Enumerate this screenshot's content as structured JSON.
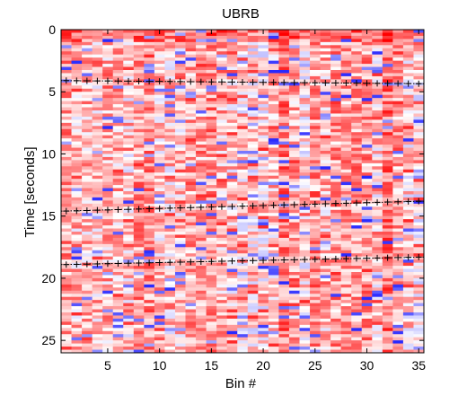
{
  "chart_data": {
    "type": "heatmap",
    "title": "UBRB",
    "xlabel": "Bin #",
    "ylabel": "Time [seconds]",
    "xlim": [
      0.5,
      35.5
    ],
    "ylim": [
      0,
      26
    ],
    "y_reversed": true,
    "x_ticks": [
      5,
      10,
      15,
      20,
      25,
      30,
      35
    ],
    "y_ticks": [
      0,
      5,
      10,
      15,
      20,
      25
    ],
    "n_bins": 35,
    "colormap": [
      "#0000ff",
      "#ffffff",
      "#ff0000"
    ],
    "marker_symbol": "+",
    "marker_color": "#000000",
    "event_lines": [
      {
        "y_start": 4.1,
        "y_end": 4.35,
        "x_start": 1,
        "x_end": 35
      },
      {
        "y_start": 14.6,
        "y_end": 13.8,
        "x_start": 1,
        "x_end": 35
      },
      {
        "y_start": 18.9,
        "y_end": 18.3,
        "x_start": 1,
        "x_end": 35
      }
    ]
  }
}
